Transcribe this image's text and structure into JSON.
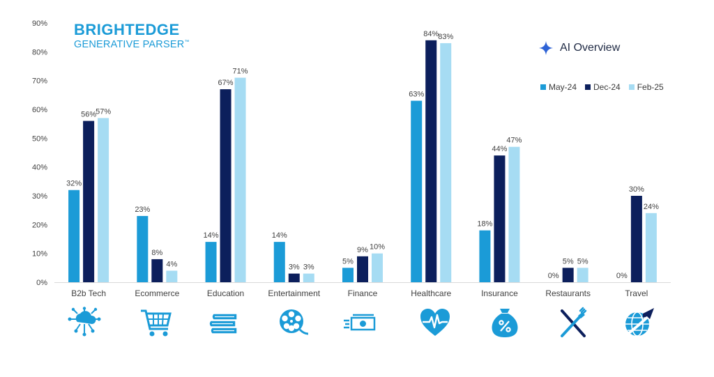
{
  "brand": {
    "title": "BRIGHTEDGE",
    "subtitle": "GENERATIVE PARSER",
    "tm": "™"
  },
  "badge": {
    "label": "AI Overview",
    "icon": "sparkle-icon"
  },
  "colors": {
    "may": "#1b9bd7",
    "dec": "#0c1f5c",
    "feb": "#a6dcf3",
    "grid": "#d9d9d9",
    "axis_text": "#404040",
    "icon": "#1b9bd7"
  },
  "chart_data": {
    "type": "bar",
    "categories": [
      "B2b Tech",
      "Ecommerce",
      "Education",
      "Entertainment",
      "Finance",
      "Healthcare",
      "Insurance",
      "Restaurants",
      "Travel"
    ],
    "series": [
      {
        "name": "May-24",
        "values": [
          32,
          23,
          14,
          14,
          5,
          63,
          18,
          0,
          0
        ],
        "labels": [
          "32%",
          "23%",
          "14%",
          "14%",
          "5%",
          "63%",
          "18%",
          "0%",
          "0%"
        ]
      },
      {
        "name": "Dec-24",
        "values": [
          56,
          8,
          67,
          3,
          9,
          84,
          44,
          5,
          30
        ],
        "labels": [
          "56%",
          "8%",
          "67%",
          "3%",
          "9%",
          "84%",
          "44%",
          "5%",
          "30%"
        ]
      },
      {
        "name": "Feb-25",
        "values": [
          57,
          4,
          71,
          3,
          10,
          83,
          47,
          5,
          24
        ],
        "labels": [
          "57%",
          "4%",
          "71%",
          "3%",
          "10%",
          "83%",
          "47%",
          "5%",
          "24%"
        ]
      }
    ],
    "ylim": [
      0,
      90
    ],
    "yticks": [
      "0%",
      "10%",
      "20%",
      "30%",
      "40%",
      "50%",
      "60%",
      "70%",
      "80%",
      "90%"
    ],
    "grid": false,
    "legend": "top-right"
  },
  "icons": [
    "cloud-network-icon",
    "shopping-cart-icon",
    "books-icon",
    "film-reel-icon",
    "money-icon",
    "heartbeat-icon",
    "money-bag-percent-icon",
    "fork-knife-icon",
    "globe-plane-icon"
  ]
}
